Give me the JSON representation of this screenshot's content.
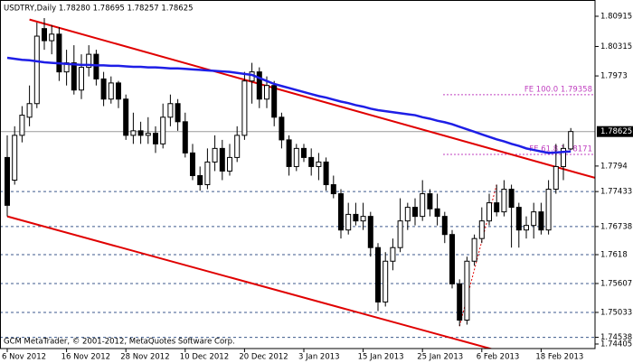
{
  "chart_data": {
    "type": "candlestick",
    "title": "USDTRY,Daily  1.78280 1.78695 1.78257 1.78625",
    "footer": "GCM MetaTrader, © 2001-2012, MetaQuotes Software Corp.",
    "categories": [
      "6 Nov 2012",
      null,
      null,
      null,
      null,
      null,
      null,
      null,
      "16 Nov 2012",
      null,
      null,
      null,
      null,
      null,
      null,
      null,
      "28 Nov 2012",
      null,
      null,
      null,
      null,
      null,
      null,
      null,
      "10 Dec 2012",
      null,
      null,
      null,
      null,
      null,
      null,
      null,
      "20 Dec 2012",
      null,
      null,
      null,
      null,
      null,
      null,
      null,
      "3 Jan 2013",
      null,
      null,
      null,
      null,
      null,
      null,
      null,
      "15 Jan 2013",
      null,
      null,
      null,
      null,
      null,
      null,
      null,
      "25 Jan 2013",
      null,
      null,
      null,
      null,
      null,
      null,
      null,
      "6 Feb 2013",
      null,
      null,
      null,
      null,
      null,
      null,
      null,
      "18 Feb 2013",
      null,
      null,
      null,
      null
    ],
    "open": [
      1.7811,
      1.7766,
      1.7855,
      1.7891,
      1.7918,
      1.8067,
      1.8043,
      1.8056,
      1.7981,
      1.7999,
      1.7945,
      1.799,
      1.8016,
      1.7967,
      1.7927,
      1.7959,
      1.7927,
      1.7855,
      1.7864,
      1.7855,
      1.7859,
      1.7838,
      1.7891,
      1.7918,
      1.7882,
      1.782,
      1.7775,
      1.7757,
      1.7802,
      1.7829,
      1.7784,
      1.7811,
      1.7855,
      1.7963,
      1.7981,
      1.7927,
      1.7954,
      1.7891,
      1.7846,
      1.7793,
      1.7829,
      1.7811,
      1.7793,
      1.7802,
      1.7757,
      1.7739,
      1.7667,
      1.7698,
      1.7685,
      1.7694,
      1.7632,
      1.7524,
      1.7605,
      1.7632,
      1.7685,
      1.7712,
      1.7694,
      1.7739,
      1.7709,
      1.7694,
      1.7658,
      1.756,
      1.7488,
      1.7605,
      1.765,
      1.7685,
      1.7721,
      1.7703,
      1.7748,
      1.7712,
      1.7667,
      1.7676,
      1.7703,
      1.7667,
      1.7748,
      1.7793,
      1.7828
    ],
    "high": [
      1.7855,
      1.7873,
      1.7913,
      1.7954,
      1.8079,
      1.8088,
      1.8074,
      1.807,
      1.8025,
      1.8034,
      1.8016,
      1.8034,
      1.8025,
      1.7981,
      1.7972,
      1.7963,
      1.7936,
      1.79,
      1.7882,
      1.7891,
      1.7873,
      1.7918,
      1.7936,
      1.7927,
      1.79,
      1.7838,
      1.7793,
      1.7829,
      1.7855,
      1.7846,
      1.7838,
      1.7873,
      1.7981,
      1.7999,
      1.799,
      1.7972,
      1.7963,
      1.79,
      1.7855,
      1.7838,
      1.7838,
      1.7829,
      1.782,
      1.7811,
      1.7775,
      1.7748,
      1.7721,
      1.7721,
      1.7721,
      1.7703,
      1.7641,
      1.7623,
      1.765,
      1.773,
      1.7721,
      1.773,
      1.7766,
      1.7748,
      1.7739,
      1.7703,
      1.7667,
      1.7569,
      1.7614,
      1.7658,
      1.7712,
      1.7739,
      1.7757,
      1.7766,
      1.7757,
      1.7721,
      1.7694,
      1.7721,
      1.7721,
      1.7766,
      1.7838,
      1.7838,
      1.78695
    ],
    "low": [
      1.7694,
      1.7757,
      1.7841,
      1.7873,
      1.7909,
      1.8025,
      1.8016,
      1.7963,
      1.7954,
      1.7936,
      1.7927,
      1.7972,
      1.7954,
      1.7913,
      1.7918,
      1.7909,
      1.7846,
      1.7838,
      1.7838,
      1.7838,
      1.782,
      1.7829,
      1.7873,
      1.7864,
      1.7811,
      1.7766,
      1.7745,
      1.7748,
      1.7784,
      1.7766,
      1.7775,
      1.7802,
      1.7846,
      1.7918,
      1.7909,
      1.7909,
      1.7873,
      1.7829,
      1.7775,
      1.7784,
      1.7802,
      1.7775,
      1.7766,
      1.7745,
      1.773,
      1.765,
      1.7658,
      1.7676,
      1.7667,
      1.7614,
      1.7506,
      1.7515,
      1.7587,
      1.7623,
      1.7667,
      1.7676,
      1.7685,
      1.7694,
      1.7676,
      1.7641,
      1.7551,
      1.7476,
      1.7479,
      1.7596,
      1.7641,
      1.7676,
      1.7694,
      1.7694,
      1.7632,
      1.7632,
      1.765,
      1.765,
      1.7658,
      1.7658,
      1.7739,
      1.7766,
      1.78257
    ],
    "close": [
      1.7716,
      1.7855,
      1.7895,
      1.7918,
      1.8052,
      1.8043,
      1.8056,
      1.7981,
      1.7999,
      1.7945,
      1.799,
      1.8016,
      1.7967,
      1.7927,
      1.7959,
      1.7927,
      1.7855,
      1.7864,
      1.7855,
      1.7859,
      1.7838,
      1.7891,
      1.7918,
      1.7882,
      1.782,
      1.7775,
      1.7757,
      1.7802,
      1.7829,
      1.7784,
      1.7811,
      1.7855,
      1.7963,
      1.7981,
      1.7927,
      1.7954,
      1.7891,
      1.7846,
      1.7793,
      1.7829,
      1.7811,
      1.7793,
      1.7802,
      1.7757,
      1.7739,
      1.7667,
      1.7698,
      1.7685,
      1.7694,
      1.7632,
      1.7524,
      1.7605,
      1.7632,
      1.7685,
      1.7712,
      1.7694,
      1.7739,
      1.7709,
      1.7694,
      1.7658,
      1.756,
      1.7488,
      1.7605,
      1.765,
      1.7685,
      1.7721,
      1.7703,
      1.7748,
      1.7712,
      1.7667,
      1.7676,
      1.7703,
      1.7667,
      1.7748,
      1.7793,
      1.7829,
      1.78625
    ],
    "up_color": "#ffffff",
    "down_color": "#000000",
    "moving_average": {
      "color": "#1e1ee6",
      "values": [
        1.8009,
        1.8007,
        1.8005,
        1.8004,
        1.8002,
        1.8,
        1.7999,
        1.7998,
        1.7997,
        1.7996,
        1.7995,
        1.7995,
        1.7994,
        1.7994,
        1.7993,
        1.7993,
        1.7992,
        1.7991,
        1.7991,
        1.799,
        1.799,
        1.7989,
        1.7988,
        1.7988,
        1.7987,
        1.7986,
        1.7985,
        1.7984,
        1.7983,
        1.7982,
        1.7981,
        1.7979,
        1.7977,
        1.7975,
        1.7969,
        1.7963,
        1.7957,
        1.7953,
        1.7949,
        1.7945,
        1.7941,
        1.7937,
        1.7933,
        1.793,
        1.7926,
        1.7922,
        1.7919,
        1.7915,
        1.7912,
        1.7908,
        1.7905,
        1.7903,
        1.7901,
        1.7899,
        1.7897,
        1.7895,
        1.7891,
        1.7888,
        1.7884,
        1.7881,
        1.7877,
        1.7872,
        1.7867,
        1.7862,
        1.7857,
        1.7852,
        1.7847,
        1.7843,
        1.7838,
        1.7834,
        1.7829,
        1.7826,
        1.7823,
        1.782,
        1.7821,
        1.7822,
        1.7823
      ]
    },
    "trendlines": [
      {
        "color": "#e00000",
        "x": [
          3,
          76
        ],
        "values": [
          1.8085,
          1.7784
        ],
        "dash": false
      },
      {
        "color": "#e00000",
        "x": [
          0,
          63
        ],
        "values": [
          1.7694,
          1.744
        ],
        "dash": false
      },
      {
        "color": "#e00000",
        "x": [
          61,
          66
        ],
        "values": [
          1.7476,
          1.7757
        ],
        "dash": true
      }
    ],
    "fibo_levels": [
      {
        "label": "FE 100.0 1.79358",
        "value": 1.79358
      },
      {
        "label": "FE 61.8 1.78171",
        "value": 1.78171
      }
    ],
    "fibo_color": "#c040c0",
    "levels": [
      1.77433,
      1.76738,
      1.7618,
      1.75607,
      1.75033,
      1.74538
    ],
    "level_color": "#3c5a8c",
    "last_price": 1.78625,
    "last_price_color": "#9a9a9a",
    "ylim": [
      1.74315,
      1.81238
    ],
    "yticks": [
      1.80915,
      1.80315,
      1.7973,
      1.7794,
      1.77433,
      1.76738,
      1.7618,
      1.75607,
      1.75033,
      1.74538,
      1.74405
    ]
  }
}
